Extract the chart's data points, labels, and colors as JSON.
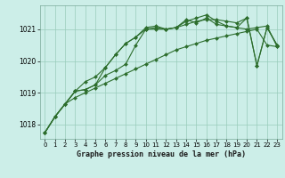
{
  "title": "Graphe pression niveau de la mer (hPa)",
  "bg_color": "#cceee8",
  "grid_color": "#99ccbb",
  "line_color": "#2d6e2d",
  "marker_color": "#2d6e2d",
  "xlim": [
    -0.5,
    23.5
  ],
  "ylim": [
    1017.55,
    1021.75
  ],
  "yticks": [
    1018,
    1019,
    1020,
    1021
  ],
  "xticks": [
    0,
    1,
    2,
    3,
    4,
    5,
    6,
    7,
    8,
    9,
    10,
    11,
    12,
    13,
    14,
    15,
    16,
    17,
    18,
    19,
    20,
    21,
    22,
    23
  ],
  "series": [
    [
      1017.75,
      1018.25,
      1018.65,
      1018.85,
      1019.0,
      1019.15,
      1019.3,
      1019.45,
      1019.6,
      1019.75,
      1019.9,
      1020.05,
      1020.2,
      1020.35,
      1020.45,
      1020.55,
      1020.65,
      1020.72,
      1020.79,
      1020.86,
      1020.93,
      1021.0,
      1020.5,
      1020.45
    ],
    [
      1017.75,
      1018.25,
      1018.65,
      1019.05,
      1019.1,
      1019.25,
      1019.8,
      1020.2,
      1020.55,
      1020.75,
      1021.0,
      1021.05,
      1021.0,
      1021.05,
      1021.3,
      1021.2,
      1021.35,
      1021.15,
      1021.1,
      1021.05,
      1021.0,
      1021.05,
      1021.1,
      1020.45
    ],
    [
      1017.75,
      1018.25,
      1018.65,
      1019.05,
      1019.35,
      1019.5,
      1019.8,
      1020.2,
      1020.55,
      1020.75,
      1021.05,
      1021.1,
      1021.0,
      1021.05,
      1021.25,
      1021.35,
      1021.45,
      1021.25,
      1021.1,
      1021.05,
      1021.35,
      1019.85,
      1021.05,
      1020.5
    ],
    [
      1017.75,
      1018.25,
      1018.65,
      1019.05,
      1019.1,
      1019.25,
      1019.55,
      1019.7,
      1019.9,
      1020.5,
      1021.0,
      1021.0,
      1021.0,
      1021.05,
      1021.15,
      1021.25,
      1021.3,
      1021.3,
      1021.25,
      1021.2,
      1021.35,
      1019.85,
      1021.05,
      1020.5
    ]
  ]
}
